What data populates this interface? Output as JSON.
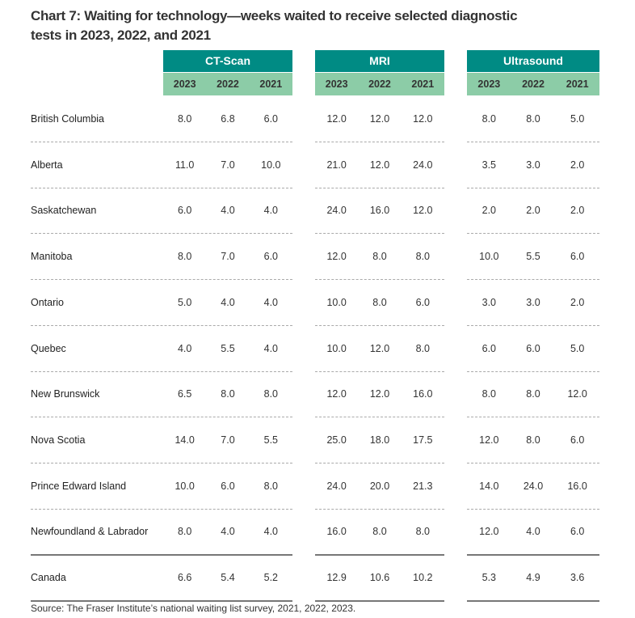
{
  "chart_data": {
    "type": "table",
    "title": "Chart 7: Waiting for technology—weeks waited to receive selected diagnostic tests in 2023, 2022, and 2021",
    "groups": [
      "CT-Scan",
      "MRI",
      "Ultrasound"
    ],
    "years": [
      "2023",
      "2022",
      "2021"
    ],
    "rows": [
      {
        "label": "British Columbia",
        "values": [
          "8.0",
          "6.8",
          "6.0",
          "12.0",
          "12.0",
          "12.0",
          "8.0",
          "8.0",
          "5.0"
        ]
      },
      {
        "label": "Alberta",
        "values": [
          "11.0",
          "7.0",
          "10.0",
          "21.0",
          "12.0",
          "24.0",
          "3.5",
          "3.0",
          "2.0"
        ]
      },
      {
        "label": "Saskatchewan",
        "values": [
          "6.0",
          "4.0",
          "4.0",
          "24.0",
          "16.0",
          "12.0",
          "2.0",
          "2.0",
          "2.0"
        ]
      },
      {
        "label": "Manitoba",
        "values": [
          "8.0",
          "7.0",
          "6.0",
          "12.0",
          "8.0",
          "8.0",
          "10.0",
          "5.5",
          "6.0"
        ]
      },
      {
        "label": "Ontario",
        "values": [
          "5.0",
          "4.0",
          "4.0",
          "10.0",
          "8.0",
          "6.0",
          "3.0",
          "3.0",
          "2.0"
        ]
      },
      {
        "label": "Quebec",
        "values": [
          "4.0",
          "5.5",
          "4.0",
          "10.0",
          "12.0",
          "8.0",
          "6.0",
          "6.0",
          "5.0"
        ]
      },
      {
        "label": "New Brunswick",
        "values": [
          "6.5",
          "8.0",
          "8.0",
          "12.0",
          "12.0",
          "16.0",
          "8.0",
          "8.0",
          "12.0"
        ]
      },
      {
        "label": "Nova Scotia",
        "values": [
          "14.0",
          "7.0",
          "5.5",
          "25.0",
          "18.0",
          "17.5",
          "12.0",
          "8.0",
          "6.0"
        ]
      },
      {
        "label": "Prince Edward Island",
        "values": [
          "10.0",
          "6.0",
          "8.0",
          "24.0",
          "20.0",
          "21.3",
          "14.0",
          "24.0",
          "16.0"
        ]
      },
      {
        "label": "Newfoundland & Labrador",
        "values": [
          "8.0",
          "4.0",
          "4.0",
          "16.0",
          "8.0",
          "8.0",
          "12.0",
          "4.0",
          "6.0"
        ]
      },
      {
        "label": "Canada",
        "values": [
          "6.6",
          "5.4",
          "5.2",
          "12.9",
          "10.6",
          "10.2",
          "5.3",
          "4.9",
          "3.6"
        ]
      }
    ],
    "source": "Source: The Fraser Institute’s national waiting list survey, 2021, 2022, 2023."
  },
  "colors": {
    "header": "#008b84",
    "subheader": "#8ccca7"
  }
}
